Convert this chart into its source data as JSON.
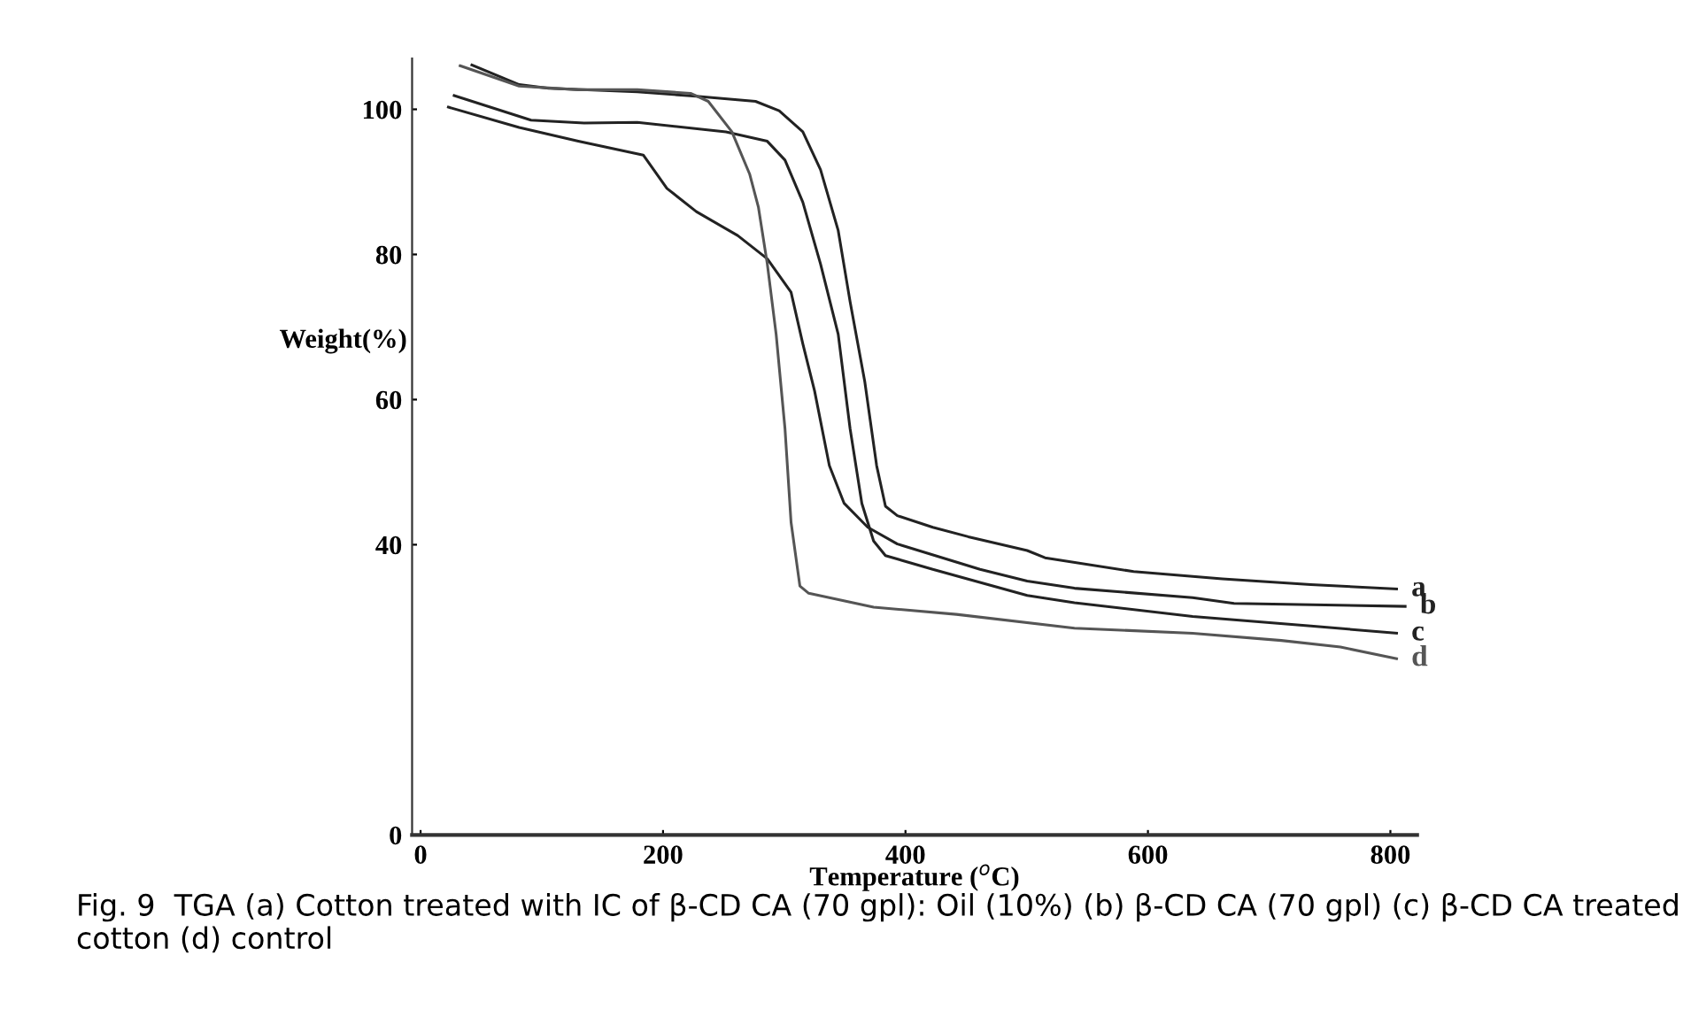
{
  "chart_data": {
    "type": "line",
    "xlabel": "Temperature ($^{o}$C)",
    "ylabel": "Weight(%)",
    "xlim": [
      -7,
      822
    ],
    "ylim": [
      0,
      107
    ],
    "xticks": [
      0,
      200,
      400,
      600,
      800
    ],
    "yticks": [
      0,
      40,
      60,
      80,
      100
    ],
    "grid": false,
    "legend": false,
    "marker": "none",
    "line_style": "solid",
    "series": [
      {
        "name": "a",
        "color": "#222222",
        "x": [
          42.3,
          81.3,
          105.7,
          178.8,
          227.5,
          276.3,
          295.8,
          315.3,
          329.9,
          344.5,
          354.3,
          366.4,
          376.2,
          383.5,
          393.3,
          422.5,
          451.8,
          500.4,
          515.1,
          588.2,
          661.3,
          734.4,
          805.1
        ],
        "values": [
          106.1,
          103.4,
          102.9,
          102.4,
          101.8,
          101.1,
          99.8,
          96.9,
          91.7,
          83.3,
          73.5,
          62.5,
          50.9,
          45.3,
          44.0,
          42.4,
          41.1,
          39.2,
          38.2,
          36.3,
          35.3,
          34.5,
          33.9
        ]
      },
      {
        "name": "b",
        "color": "#222222",
        "x": [
          22.9,
          81.3,
          130.1,
          183.7,
          203.2,
          227.5,
          261.6,
          286.0,
          305.6,
          315.3,
          325.0,
          337.2,
          349.4,
          368.9,
          393.3,
          461.5,
          500.4,
          539.4,
          636.9,
          671.0,
          812.2
        ],
        "values": [
          100.3,
          97.5,
          95.6,
          93.7,
          89.1,
          85.9,
          82.6,
          79.4,
          74.8,
          67.7,
          61.2,
          50.9,
          45.7,
          42.4,
          40.1,
          36.6,
          35.0,
          34.0,
          32.7,
          31.9,
          31.5
        ]
      },
      {
        "name": "c",
        "color": "#222222",
        "x": [
          27.7,
          91.1,
          134.9,
          178.8,
          251.9,
          286.0,
          300.6,
          315.3,
          329.9,
          344.5,
          354.3,
          364.0,
          373.7,
          383.5,
          422.5,
          500.4,
          539.4,
          636.9,
          734.4,
          805.1
        ],
        "values": [
          101.9,
          98.5,
          98.1,
          98.2,
          96.9,
          95.6,
          93.0,
          87.2,
          78.7,
          69.0,
          56.0,
          45.7,
          40.5,
          38.5,
          36.6,
          33.0,
          32.0,
          30.1,
          28.8,
          27.8
        ]
      },
      {
        "name": "d",
        "color": "#555555",
        "x": [
          32.6,
          81.3,
          130.1,
          178.8,
          222.7,
          237.3,
          256.8,
          271.4,
          278.7,
          286.0,
          293.3,
          300.6,
          305.6,
          312.9,
          320.2,
          373.7,
          442.0,
          539.4,
          636.9,
          710.0,
          758.8,
          805.1
        ],
        "values": [
          106.0,
          103.2,
          102.7,
          102.7,
          102.2,
          101.1,
          96.9,
          91.1,
          86.5,
          78.7,
          69.0,
          56.0,
          43.1,
          34.3,
          33.3,
          31.4,
          30.4,
          28.5,
          27.8,
          26.8,
          25.9,
          24.3
        ]
      }
    ],
    "annotations": [
      "Fig. 9  TGA (a) Cotton treated with IC of β-CD CA (70 gpl): Oil (10%) (b) β-CD CA (70 gpl) (c) β-CD CA treated cotton (d) control"
    ]
  }
}
